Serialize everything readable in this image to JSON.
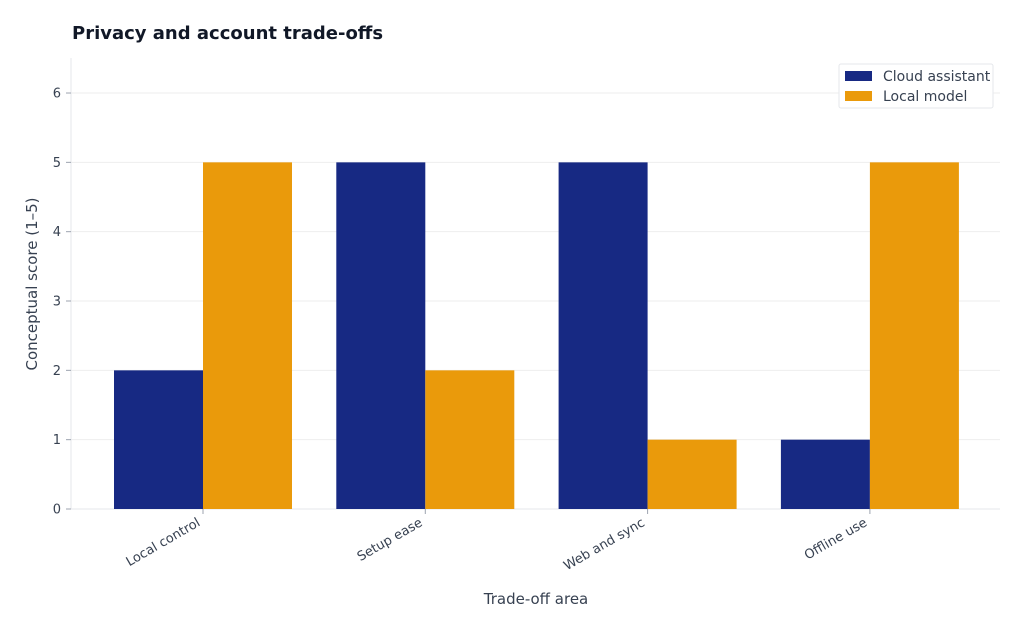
{
  "chart_data": {
    "type": "bar",
    "title": "Privacy and account trade-offs",
    "xlabel": "Trade-off area",
    "ylabel": "Conceptual score (1–5)",
    "categories": [
      "Local control",
      "Setup ease",
      "Web and sync",
      "Offline use"
    ],
    "series": [
      {
        "name": "Cloud assistant",
        "values": [
          2,
          5,
          5,
          1
        ],
        "color": "#172983"
      },
      {
        "name": "Local model",
        "values": [
          5,
          2,
          1,
          5
        ],
        "color": "#EA9A0B"
      }
    ],
    "ylim": [
      0,
      6.5
    ],
    "yticks": [
      0,
      1,
      2,
      3,
      4,
      5,
      6
    ],
    "grid": "horizontal",
    "legend_position": "top-right"
  }
}
